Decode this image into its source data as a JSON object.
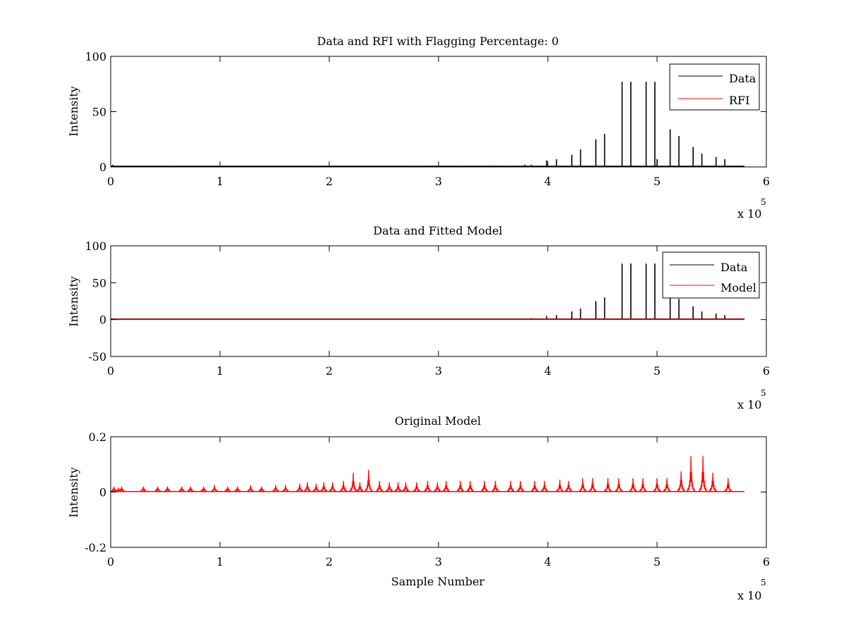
{
  "chart_data": [
    {
      "type": "line",
      "title": "Data and RFI with Flagging Percentage: 0",
      "xlabel": "",
      "ylabel": "Intensity",
      "xlim": [
        0,
        6
      ],
      "ylim": [
        0,
        100
      ],
      "x_ticks": [
        "0",
        "1",
        "2",
        "3",
        "4",
        "5",
        "6"
      ],
      "y_ticks": [
        {
          "v": 0,
          "label": "0"
        },
        {
          "v": 50,
          "label": "50"
        },
        {
          "v": 100,
          "label": "100"
        }
      ],
      "x_exponent": {
        "base": "x 10",
        "power": "5"
      },
      "legend": {
        "position": "top-right",
        "entries": [
          {
            "name": "Data",
            "color": "#000000"
          },
          {
            "name": "RFI",
            "color": "#ff0000"
          }
        ]
      },
      "series": [
        {
          "name": "Data",
          "color": "#000000",
          "baseline": 0.5,
          "x_end": 5.8,
          "spikes": [
            [
              0.02,
              2
            ],
            [
              0.55,
              1
            ],
            [
              1.88,
              1
            ],
            [
              2.72,
              1
            ],
            [
              2.85,
              1
            ],
            [
              3.0,
              1
            ],
            [
              3.2,
              1
            ],
            [
              3.48,
              1
            ],
            [
              3.65,
              1
            ],
            [
              3.79,
              2
            ],
            [
              3.85,
              2
            ],
            [
              3.99,
              6
            ],
            [
              4.08,
              7
            ],
            [
              4.22,
              11
            ],
            [
              4.3,
              16
            ],
            [
              4.44,
              25
            ],
            [
              4.52,
              30
            ],
            [
              4.68,
              77
            ],
            [
              4.76,
              77
            ],
            [
              4.9,
              77
            ],
            [
              4.98,
              77
            ],
            [
              5.0,
              7
            ],
            [
              5.12,
              34
            ],
            [
              5.2,
              28
            ],
            [
              5.33,
              18
            ],
            [
              5.41,
              12
            ],
            [
              5.54,
              9
            ],
            [
              5.62,
              7
            ]
          ]
        },
        {
          "name": "RFI",
          "color": "#ff0000",
          "values": []
        }
      ]
    },
    {
      "type": "line",
      "title": "Data and Fitted Model",
      "xlabel": "",
      "ylabel": "Intensity",
      "xlim": [
        0,
        6
      ],
      "ylim": [
        -50,
        100
      ],
      "x_ticks": [
        "0",
        "1",
        "2",
        "3",
        "4",
        "5",
        "6"
      ],
      "y_ticks": [
        {
          "v": -50,
          "label": "-50"
        },
        {
          "v": 0,
          "label": "0"
        },
        {
          "v": 50,
          "label": "50"
        },
        {
          "v": 100,
          "label": "100"
        }
      ],
      "x_exponent": {
        "base": "x 10",
        "power": "5"
      },
      "legend": {
        "position": "top-right",
        "entries": [
          {
            "name": "Data",
            "color": "#000000"
          },
          {
            "name": "Model",
            "color": "#ff0000"
          }
        ]
      },
      "series": [
        {
          "name": "Data",
          "color": "#000000",
          "baseline": 0.5,
          "x_end": 5.8,
          "spikes": [
            [
              1.88,
              1
            ],
            [
              3.62,
              1
            ],
            [
              3.85,
              2
            ],
            [
              3.99,
              5
            ],
            [
              4.08,
              6
            ],
            [
              4.22,
              11
            ],
            [
              4.3,
              15
            ],
            [
              4.44,
              25
            ],
            [
              4.52,
              30
            ],
            [
              4.68,
              76
            ],
            [
              4.76,
              76
            ],
            [
              4.9,
              76
            ],
            [
              4.98,
              76
            ],
            [
              5.12,
              34
            ],
            [
              5.2,
              28
            ],
            [
              5.33,
              18
            ],
            [
              5.41,
              11
            ],
            [
              5.54,
              8
            ],
            [
              5.62,
              6
            ]
          ]
        },
        {
          "name": "Model",
          "color": "#ff0000",
          "constant": 0.5,
          "x_end": 5.8
        }
      ]
    },
    {
      "type": "line",
      "title": "Original Model",
      "xlabel": "Sample Number",
      "ylabel": "Intensity",
      "xlim": [
        0,
        6
      ],
      "ylim": [
        -0.2,
        0.2
      ],
      "x_ticks": [
        "0",
        "1",
        "2",
        "3",
        "4",
        "5",
        "6"
      ],
      "y_ticks": [
        {
          "v": -0.2,
          "label": "-0.2"
        },
        {
          "v": 0,
          "label": "0"
        },
        {
          "v": 0.2,
          "label": "0.2"
        }
      ],
      "x_exponent": {
        "base": "x 10",
        "power": "5"
      },
      "series": [
        {
          "name": "",
          "color": "#ff0000",
          "baseline": 0.002,
          "x_end": 5.8,
          "peaks": [
            [
              0.03,
              0.02
            ],
            [
              0.07,
              0.015
            ],
            [
              0.1,
              0.02
            ],
            [
              0.3,
              0.02
            ],
            [
              0.43,
              0.02
            ],
            [
              0.52,
              0.02
            ],
            [
              0.65,
              0.02
            ],
            [
              0.73,
              0.02
            ],
            [
              0.85,
              0.02
            ],
            [
              0.95,
              0.025
            ],
            [
              1.07,
              0.02
            ],
            [
              1.16,
              0.02
            ],
            [
              1.28,
              0.025
            ],
            [
              1.38,
              0.02
            ],
            [
              1.51,
              0.025
            ],
            [
              1.6,
              0.025
            ],
            [
              1.73,
              0.03
            ],
            [
              1.8,
              0.035
            ],
            [
              1.88,
              0.03
            ],
            [
              1.95,
              0.035
            ],
            [
              2.03,
              0.035
            ],
            [
              2.13,
              0.04
            ],
            [
              2.22,
              0.07
            ],
            [
              2.28,
              0.035
            ],
            [
              2.36,
              0.08
            ],
            [
              2.46,
              0.04
            ],
            [
              2.55,
              0.035
            ],
            [
              2.63,
              0.035
            ],
            [
              2.7,
              0.035
            ],
            [
              2.8,
              0.035
            ],
            [
              2.9,
              0.04
            ],
            [
              2.99,
              0.035
            ],
            [
              3.07,
              0.04
            ],
            [
              3.2,
              0.04
            ],
            [
              3.29,
              0.04
            ],
            [
              3.42,
              0.04
            ],
            [
              3.52,
              0.04
            ],
            [
              3.66,
              0.04
            ],
            [
              3.75,
              0.04
            ],
            [
              3.88,
              0.04
            ],
            [
              3.97,
              0.04
            ],
            [
              4.11,
              0.045
            ],
            [
              4.19,
              0.04
            ],
            [
              4.32,
              0.05
            ],
            [
              4.41,
              0.05
            ],
            [
              4.55,
              0.05
            ],
            [
              4.65,
              0.05
            ],
            [
              4.78,
              0.05
            ],
            [
              4.87,
              0.05
            ],
            [
              5.0,
              0.05
            ],
            [
              5.09,
              0.05
            ],
            [
              5.22,
              0.075
            ],
            [
              5.31,
              0.13
            ],
            [
              5.42,
              0.13
            ],
            [
              5.51,
              0.07
            ],
            [
              5.65,
              0.05
            ]
          ]
        }
      ]
    }
  ]
}
